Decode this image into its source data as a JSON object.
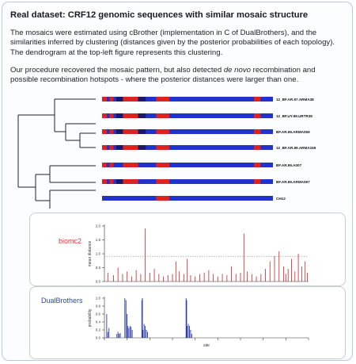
{
  "slide": {
    "title": "Real dataset: CRF12 genomic sequences with similar mosaic structure",
    "paragraph1": "The mosaics were estimated using cBrother (implementation in C of DualBrothers), and the similarities inferred by clustering (distances given by the posterior probabilities of each topology). The dendrogram at the top-left figure represents this clustering.",
    "paragraph2_before": "Our procedure recovered the mosaic pattern, but also detected ",
    "paragraph2_italic": "de novo",
    "paragraph2_after": " recombination and possible recombination hotspots - where the posterior distances were larger than one."
  },
  "sequences": [
    {
      "label": "12_BF.AR.97.ARMA38",
      "segments": [
        {
          "from": 0,
          "to": 0.5,
          "color": "#dd2222"
        },
        {
          "from": 0.8,
          "to": 1.2,
          "color": "#dd2222"
        },
        {
          "from": 1.5,
          "to": 2.2,
          "color": "#1a1a6a"
        },
        {
          "from": 2.2,
          "to": 3.8,
          "color": "#dd2222"
        },
        {
          "from": 3.8,
          "to": 4.6,
          "color": "#1a1a6a"
        },
        {
          "from": 5.7,
          "to": 7.1,
          "color": "#dd2222"
        },
        {
          "from": 16.0,
          "to": 16.7,
          "color": "#dd2222"
        }
      ]
    },
    {
      "label": "12_BF.UY.99.URTR35",
      "segments": [
        {
          "from": 0,
          "to": 0.5,
          "color": "#dd2222"
        },
        {
          "from": 0.8,
          "to": 1.2,
          "color": "#dd2222"
        },
        {
          "from": 1.5,
          "to": 2.2,
          "color": "#1a1a6a"
        },
        {
          "from": 2.2,
          "to": 3.8,
          "color": "#dd2222"
        },
        {
          "from": 3.8,
          "to": 4.6,
          "color": "#1a1a6a"
        },
        {
          "from": 5.7,
          "to": 7.1,
          "color": "#dd2222"
        },
        {
          "from": 16.0,
          "to": 16.7,
          "color": "#dd2222"
        }
      ]
    },
    {
      "label": "BF.AR.99.ARMA059",
      "segments": [
        {
          "from": 0,
          "to": 0.5,
          "color": "#dd2222"
        },
        {
          "from": 0.8,
          "to": 1.2,
          "color": "#dd2222"
        },
        {
          "from": 1.5,
          "to": 2.2,
          "color": "#1a1a6a"
        },
        {
          "from": 2.2,
          "to": 3.8,
          "color": "#dd2222"
        },
        {
          "from": 3.8,
          "to": 4.6,
          "color": "#1a1a6a"
        },
        {
          "from": 5.7,
          "to": 7.1,
          "color": "#dd2222"
        },
        {
          "from": 16.0,
          "to": 16.7,
          "color": "#dd2222"
        }
      ]
    },
    {
      "label": "12_BF.AR.99.ARMA159",
      "segments": [
        {
          "from": 0,
          "to": 0.5,
          "color": "#dd2222"
        },
        {
          "from": 0.8,
          "to": 1.2,
          "color": "#dd2222"
        },
        {
          "from": 1.5,
          "to": 2.2,
          "color": "#1a1a6a"
        },
        {
          "from": 2.2,
          "to": 3.8,
          "color": "#dd2222"
        },
        {
          "from": 3.8,
          "to": 4.6,
          "color": "#1a1a6a"
        },
        {
          "from": 5.7,
          "to": 7.1,
          "color": "#dd2222"
        },
        {
          "from": 16.0,
          "to": 16.7,
          "color": "#dd2222"
        }
      ]
    },
    {
      "label": "BF.AR.99.A007",
      "segments": [
        {
          "from": 0,
          "to": 0.5,
          "color": "#dd2222"
        },
        {
          "from": 0.8,
          "to": 1.2,
          "color": "#dd2222"
        },
        {
          "from": 2.2,
          "to": 3.8,
          "color": "#dd2222"
        },
        {
          "from": 5.7,
          "to": 7.1,
          "color": "#dd2222"
        },
        {
          "from": 16.0,
          "to": 16.7,
          "color": "#dd2222"
        }
      ]
    },
    {
      "label": "BF.AR.99.ARMA097",
      "segments": [
        {
          "from": 0,
          "to": 0.5,
          "color": "#dd2222"
        },
        {
          "from": 0.8,
          "to": 1.2,
          "color": "#dd2222"
        },
        {
          "from": 1.5,
          "to": 2.2,
          "color": "#1a1a6a"
        },
        {
          "from": 2.2,
          "to": 3.8,
          "color": "#dd2222"
        },
        {
          "from": 5.7,
          "to": 7.1,
          "color": "#dd2222"
        },
        {
          "from": 16.0,
          "to": 16.7,
          "color": "#dd2222"
        }
      ]
    },
    {
      "label": "CH12",
      "segments": [
        {
          "from": 5.7,
          "to": 7.1,
          "color": "#dd2222"
        }
      ]
    },
    {
      "label": "BF.AR.99.A017",
      "segments": [
        {
          "from": 0,
          "to": 0.5,
          "color": "#dd2222"
        },
        {
          "from": 0.8,
          "to": 1.2,
          "color": "#dd2222"
        },
        {
          "from": 2.2,
          "to": 3.8,
          "color": "#dd2222"
        },
        {
          "from": 5.7,
          "to": 7.1,
          "color": "#dd2222"
        },
        {
          "from": 16.0,
          "to": 16.7,
          "color": "#dd2222"
        }
      ]
    }
  ],
  "chart_data": [
    {
      "type": "bar",
      "name": "biomc2",
      "ylabel": "mean distance",
      "yticks": [
        "0.0",
        "0.5",
        "1.0",
        "1.5",
        "2.0"
      ],
      "ylim": [
        0,
        2.2
      ],
      "threshold": 1.0,
      "color": "#d43a3a",
      "x": [
        0.3,
        0.8,
        1.2,
        1.6,
        2.0,
        2.4,
        2.8,
        3.2,
        3.6,
        4.0,
        4.4,
        4.8,
        5.2,
        5.6,
        6.0,
        6.3,
        6.6,
        7.0,
        7.3,
        7.6,
        8.0,
        8.4,
        8.8,
        9.2,
        9.6,
        10.0,
        10.4,
        10.8,
        11.2,
        11.6,
        12.0,
        12.3,
        12.6,
        13.0,
        13.4,
        13.8,
        14.2,
        14.6,
        15.0,
        15.4,
        15.8,
        16.0,
        16.2,
        16.5,
        16.8,
        17.1,
        17.4,
        17.7,
        17.9
      ],
      "values": [
        0.35,
        0.25,
        0.55,
        0.3,
        0.4,
        0.2,
        0.45,
        0.3,
        2.1,
        0.35,
        0.5,
        0.3,
        0.2,
        0.25,
        0.3,
        0.8,
        0.4,
        0.3,
        0.9,
        0.25,
        0.2,
        0.3,
        0.35,
        0.45,
        0.3,
        0.2,
        0.3,
        0.25,
        0.6,
        0.3,
        0.35,
        1.9,
        0.4,
        0.3,
        0.2,
        0.3,
        0.5,
        0.8,
        1.0,
        1.2,
        0.6,
        0.3,
        0.5,
        0.9,
        0.4,
        1.1,
        0.6,
        0.8,
        0.35
      ]
    },
    {
      "type": "bar",
      "name": "DualBrothers",
      "ylabel": "probability",
      "xlabel": "site",
      "yticks": [
        "0.0",
        "0.2",
        "0.4",
        "0.6",
        "0.8",
        "1.0"
      ],
      "ylim": [
        0,
        1.0
      ],
      "color": "#2c3aa6",
      "x": [
        0.2,
        0.3,
        0.4,
        1.1,
        1.2,
        1.3,
        1.4,
        1.8,
        1.9,
        2.0,
        2.05,
        2.15,
        2.25,
        2.35,
        2.45,
        3.3,
        3.35,
        3.4,
        3.5,
        3.6,
        3.7,
        3.8,
        7.2,
        7.25,
        7.3,
        7.4,
        7.5,
        7.6,
        7.7
      ],
      "values": [
        0.6,
        0.15,
        0.25,
        0.1,
        0.15,
        0.1,
        0.12,
        1.0,
        0.95,
        0.6,
        0.3,
        0.25,
        0.3,
        0.28,
        0.2,
        0.95,
        1.0,
        0.2,
        0.35,
        0.3,
        0.2,
        0.15,
        1.0,
        0.95,
        0.3,
        0.35,
        0.3,
        0.2,
        0.1
      ],
      "xlim": [
        0,
        18
      ]
    }
  ]
}
